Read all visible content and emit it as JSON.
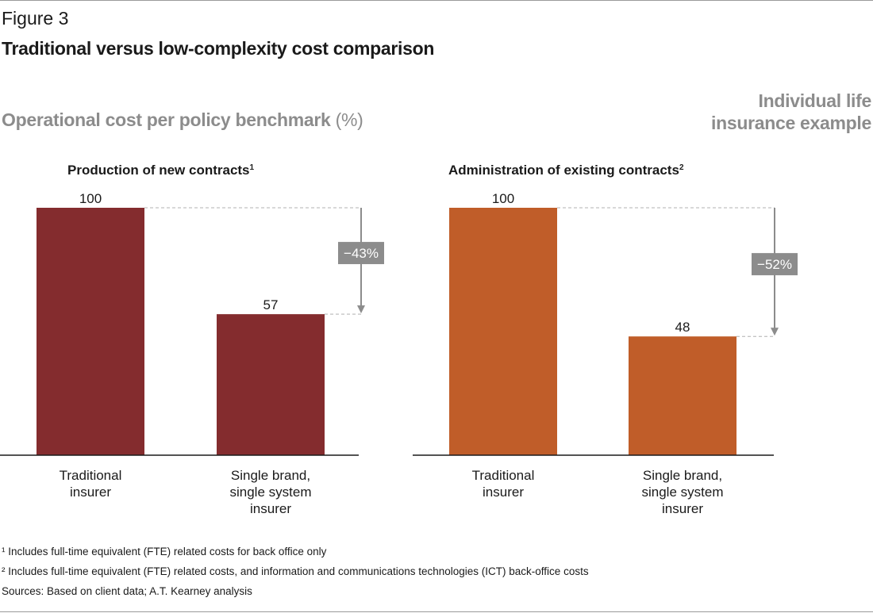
{
  "figure_label": "Figure 3",
  "title": "Traditional versus low-complexity cost comparison",
  "subtitle": "Operational cost per policy benchmark",
  "subtitle_unit": "(%)",
  "example_label": [
    "Individual life",
    "insurance example"
  ],
  "colors": {
    "panel1": "#842c2e",
    "panel2": "#c05d29",
    "callout": "#8c8c8c"
  },
  "chart_data": [
    {
      "type": "bar",
      "title": "Production of new contracts",
      "title_footnote": "1",
      "categories": [
        [
          "Traditional",
          "insurer"
        ],
        [
          "Single brand,",
          "single system",
          "insurer"
        ]
      ],
      "values": [
        100,
        57
      ],
      "ylim": [
        0,
        100
      ],
      "change_label": "−43%",
      "color": "#842c2e"
    },
    {
      "type": "bar",
      "title": "Administration of existing contracts",
      "title_footnote": "2",
      "categories": [
        [
          "Traditional",
          "insurer"
        ],
        [
          "Single brand,",
          "single system",
          "insurer"
        ]
      ],
      "values": [
        100,
        48
      ],
      "ylim": [
        0,
        100
      ],
      "change_label": "−52%",
      "color": "#c05d29"
    }
  ],
  "footnotes": [
    "¹ Includes full-time equivalent (FTE) related costs for back office only",
    "² Includes full-time equivalent (FTE) related costs, and information and communications technologies (ICT) back-office costs",
    "Sources: Based on client data; A.T. Kearney analysis"
  ]
}
